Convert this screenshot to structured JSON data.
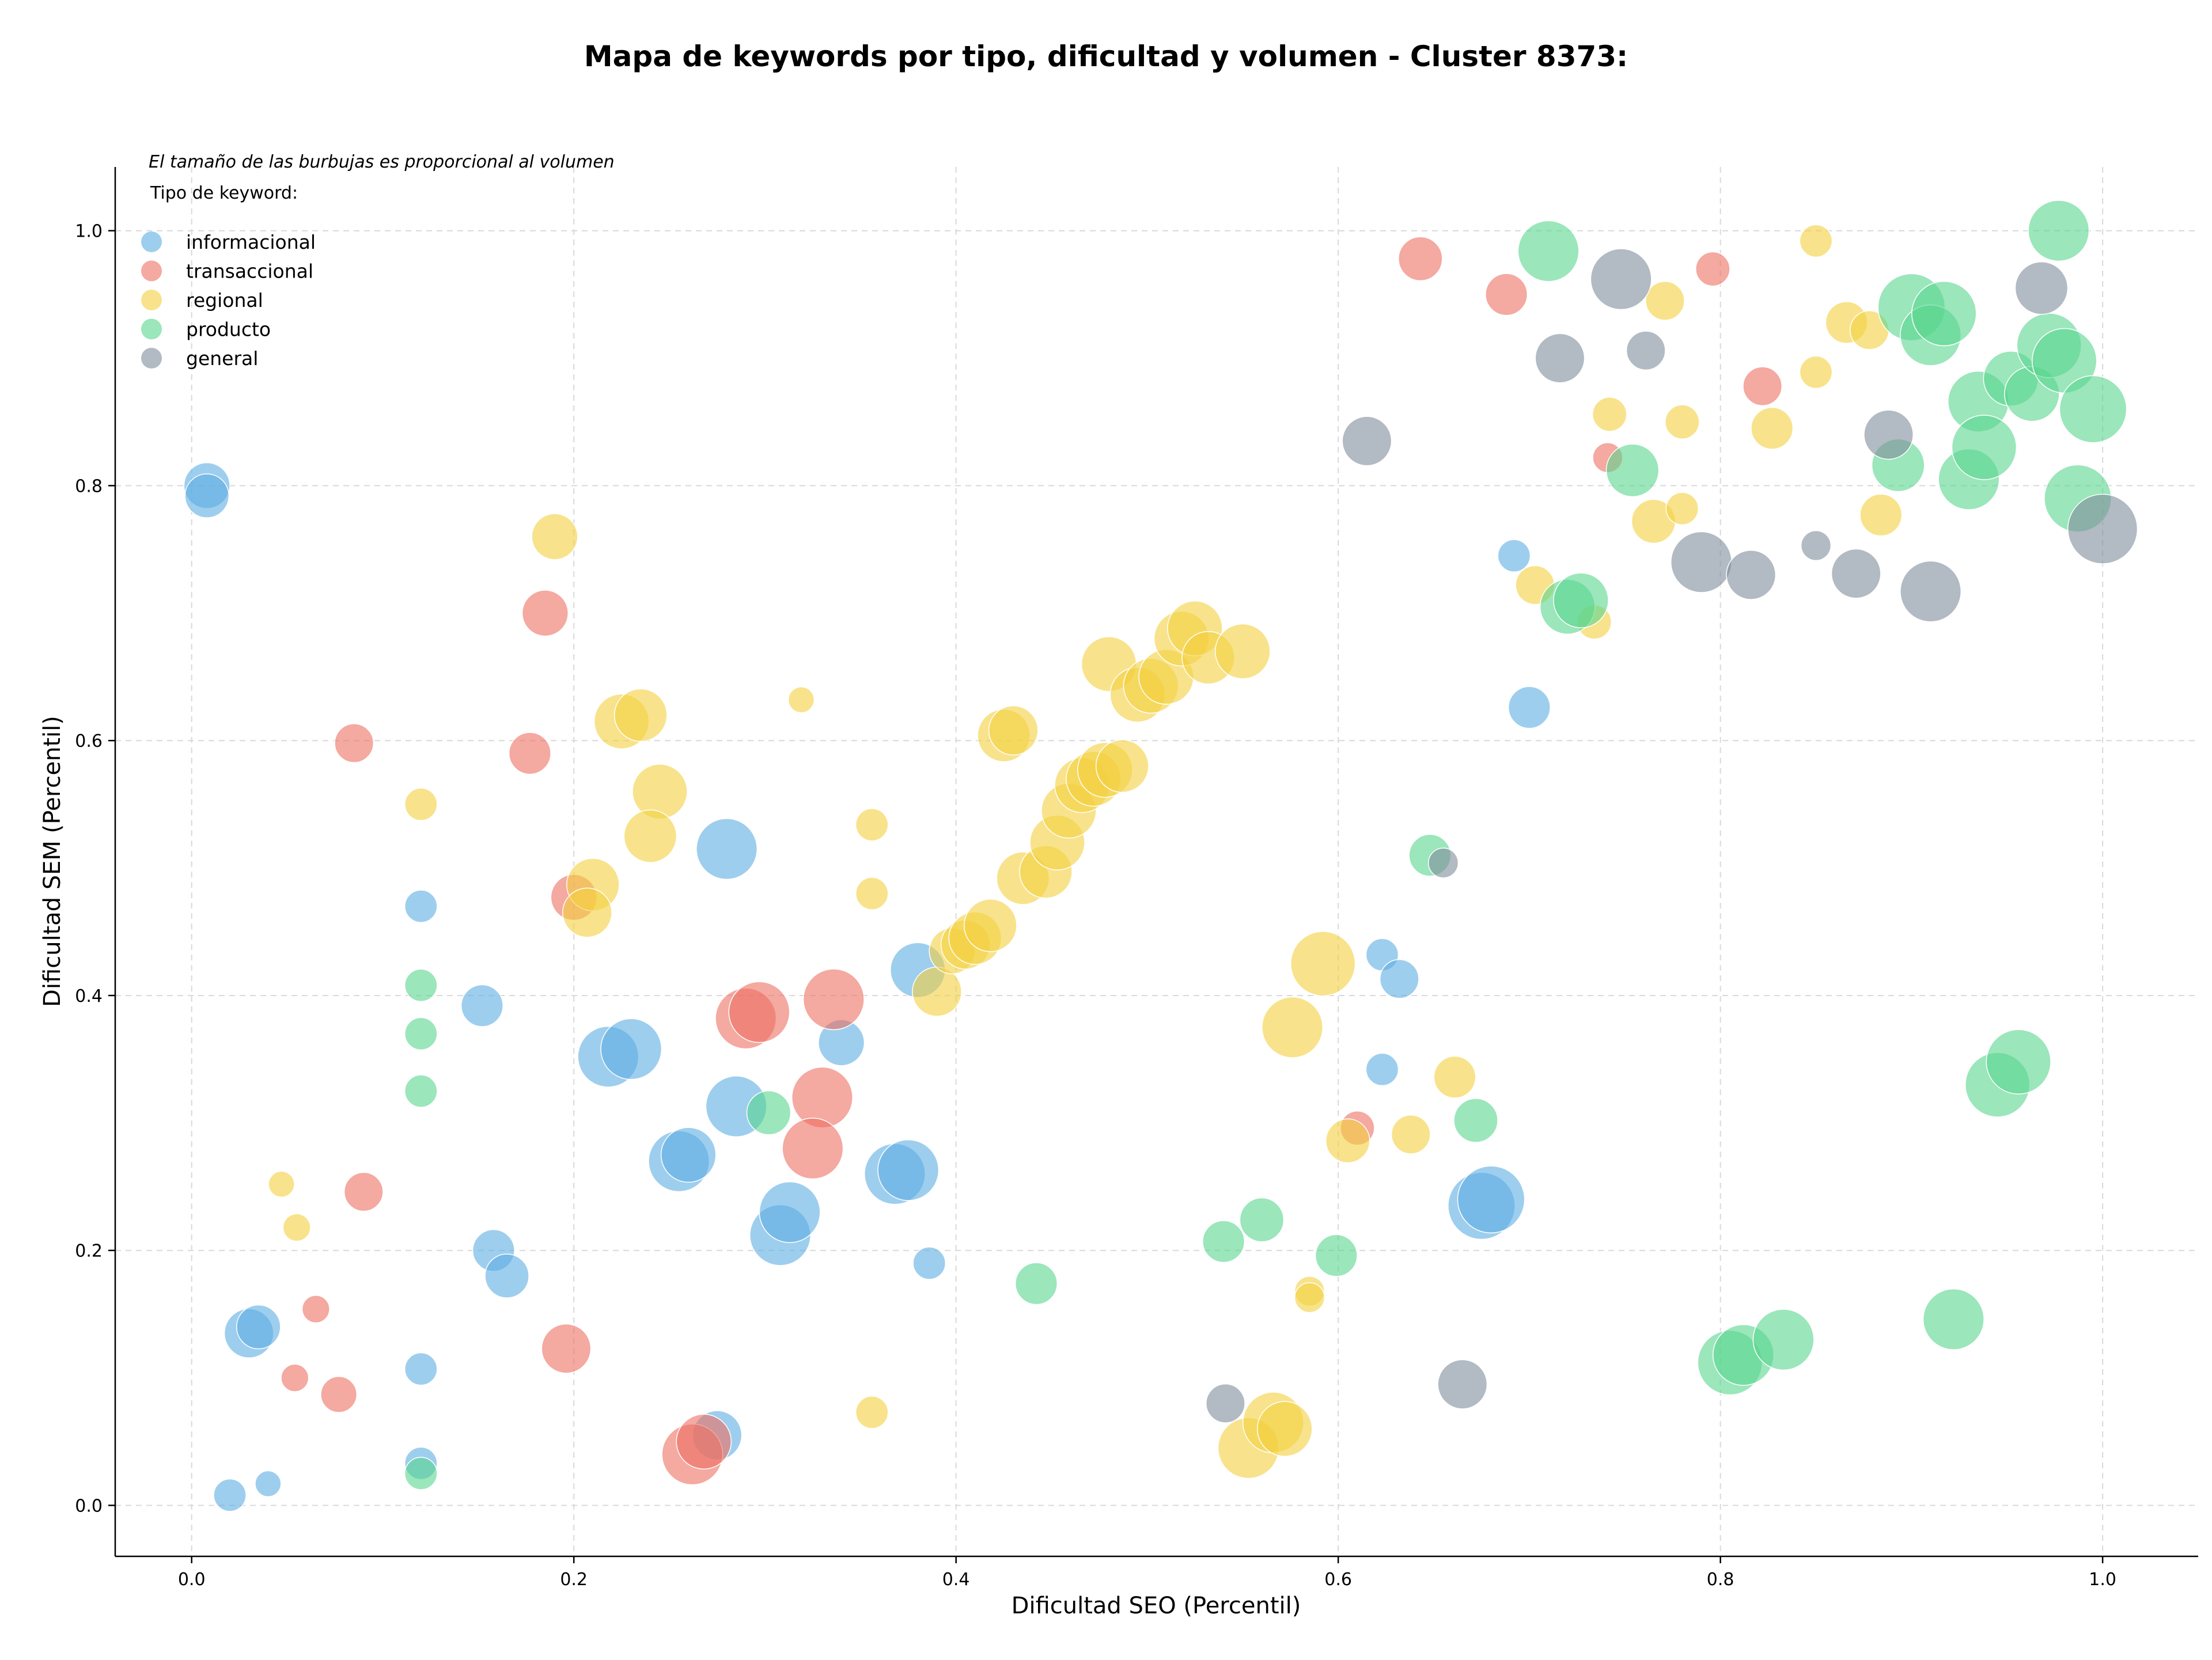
{
  "chart_data": {
    "type": "scatter",
    "title": "Mapa de keywords por tipo, dificultad y volumen - Cluster 8373:",
    "xlabel": "Dificultad SEO (Percentil)",
    "ylabel": "Dificultad SEM (Percentil)",
    "xlim": [
      -0.04,
      1.05
    ],
    "ylim": [
      -0.04,
      1.05
    ],
    "xticks": [
      "0.0",
      "0.2",
      "0.4",
      "0.6",
      "0.8",
      "1.0"
    ],
    "yticks": [
      "0.0",
      "0.2",
      "0.4",
      "0.6",
      "0.8",
      "1.0"
    ],
    "grid": true,
    "note": "El tamaño de las burbujas es proporcional al volumen",
    "legend_title": "Tipo de keyword:",
    "legend_position": "top-left",
    "series": [
      {
        "name": "informacional",
        "color": "#5DADE2",
        "points": [
          [
            0.008,
            0.8,
            0.42
          ],
          [
            0.008,
            0.792,
            0.4
          ],
          [
            0.03,
            0.135,
            0.45
          ],
          [
            0.035,
            0.14,
            0.4
          ],
          [
            0.04,
            0.017,
            0.2
          ],
          [
            0.02,
            0.008,
            0.28
          ],
          [
            0.12,
            0.47,
            0.28
          ],
          [
            0.12,
            0.107,
            0.28
          ],
          [
            0.12,
            0.033,
            0.28
          ],
          [
            0.152,
            0.392,
            0.38
          ],
          [
            0.158,
            0.2,
            0.38
          ],
          [
            0.165,
            0.18,
            0.4
          ],
          [
            0.28,
            0.515,
            0.55
          ],
          [
            0.218,
            0.352,
            0.55
          ],
          [
            0.23,
            0.358,
            0.55
          ],
          [
            0.255,
            0.27,
            0.55
          ],
          [
            0.26,
            0.275,
            0.5
          ],
          [
            0.285,
            0.313,
            0.55
          ],
          [
            0.275,
            0.055,
            0.45
          ],
          [
            0.308,
            0.212,
            0.55
          ],
          [
            0.313,
            0.23,
            0.55
          ],
          [
            0.34,
            0.363,
            0.42
          ],
          [
            0.368,
            0.26,
            0.55
          ],
          [
            0.375,
            0.263,
            0.55
          ],
          [
            0.38,
            0.42,
            0.5
          ],
          [
            0.386,
            0.19,
            0.28
          ],
          [
            0.692,
            0.745,
            0.28
          ],
          [
            0.7,
            0.626,
            0.38
          ],
          [
            0.623,
            0.432,
            0.28
          ],
          [
            0.632,
            0.413,
            0.35
          ],
          [
            0.623,
            0.342,
            0.28
          ],
          [
            0.675,
            0.235,
            0.6
          ],
          [
            0.68,
            0.24,
            0.6
          ]
        ]
      },
      {
        "name": "transaccional",
        "color": "#EC7063",
        "points": [
          [
            0.085,
            0.598,
            0.35
          ],
          [
            0.09,
            0.246,
            0.35
          ],
          [
            0.054,
            0.1,
            0.22
          ],
          [
            0.065,
            0.154,
            0.22
          ],
          [
            0.077,
            0.087,
            0.32
          ],
          [
            0.185,
            0.7,
            0.42
          ],
          [
            0.177,
            0.59,
            0.38
          ],
          [
            0.2,
            0.477,
            0.42
          ],
          [
            0.196,
            0.123,
            0.45
          ],
          [
            0.29,
            0.382,
            0.55
          ],
          [
            0.297,
            0.387,
            0.55
          ],
          [
            0.336,
            0.397,
            0.55
          ],
          [
            0.33,
            0.32,
            0.55
          ],
          [
            0.325,
            0.28,
            0.55
          ],
          [
            0.262,
            0.04,
            0.55
          ],
          [
            0.268,
            0.05,
            0.5
          ],
          [
            0.61,
            0.296,
            0.3
          ],
          [
            0.643,
            0.978,
            0.4
          ],
          [
            0.688,
            0.95,
            0.38
          ],
          [
            0.741,
            0.822,
            0.25
          ],
          [
            0.796,
            0.97,
            0.3
          ],
          [
            0.822,
            0.878,
            0.35
          ]
        ]
      },
      {
        "name": "regional",
        "color": "#F4D03F",
        "points": [
          [
            0.047,
            0.252,
            0.2
          ],
          [
            0.055,
            0.218,
            0.22
          ],
          [
            0.12,
            0.55,
            0.28
          ],
          [
            0.19,
            0.76,
            0.42
          ],
          [
            0.225,
            0.615,
            0.5
          ],
          [
            0.235,
            0.62,
            0.48
          ],
          [
            0.245,
            0.56,
            0.5
          ],
          [
            0.24,
            0.525,
            0.48
          ],
          [
            0.21,
            0.487,
            0.48
          ],
          [
            0.207,
            0.465,
            0.45
          ],
          [
            0.319,
            0.632,
            0.2
          ],
          [
            0.356,
            0.534,
            0.28
          ],
          [
            0.356,
            0.48,
            0.28
          ],
          [
            0.356,
            0.073,
            0.28
          ],
          [
            0.39,
            0.403,
            0.45
          ],
          [
            0.398,
            0.435,
            0.42
          ],
          [
            0.405,
            0.44,
            0.45
          ],
          [
            0.41,
            0.445,
            0.48
          ],
          [
            0.418,
            0.455,
            0.48
          ],
          [
            0.425,
            0.604,
            0.48
          ],
          [
            0.43,
            0.608,
            0.45
          ],
          [
            0.435,
            0.492,
            0.48
          ],
          [
            0.447,
            0.497,
            0.48
          ],
          [
            0.453,
            0.52,
            0.5
          ],
          [
            0.459,
            0.545,
            0.5
          ],
          [
            0.466,
            0.565,
            0.5
          ],
          [
            0.472,
            0.57,
            0.5
          ],
          [
            0.478,
            0.577,
            0.5
          ],
          [
            0.487,
            0.58,
            0.48
          ],
          [
            0.48,
            0.66,
            0.5
          ],
          [
            0.495,
            0.636,
            0.5
          ],
          [
            0.502,
            0.643,
            0.5
          ],
          [
            0.51,
            0.65,
            0.5
          ],
          [
            0.518,
            0.68,
            0.5
          ],
          [
            0.525,
            0.688,
            0.5
          ],
          [
            0.532,
            0.665,
            0.48
          ],
          [
            0.55,
            0.67,
            0.5
          ],
          [
            0.576,
            0.375,
            0.55
          ],
          [
            0.592,
            0.425,
            0.58
          ],
          [
            0.553,
            0.045,
            0.55
          ],
          [
            0.566,
            0.065,
            0.55
          ],
          [
            0.572,
            0.06,
            0.5
          ],
          [
            0.585,
            0.168,
            0.25
          ],
          [
            0.585,
            0.163,
            0.25
          ],
          [
            0.605,
            0.286,
            0.4
          ],
          [
            0.638,
            0.291,
            0.35
          ],
          [
            0.661,
            0.336,
            0.38
          ],
          [
            0.703,
            0.722,
            0.35
          ],
          [
            0.734,
            0.693,
            0.3
          ],
          [
            0.742,
            0.856,
            0.3
          ],
          [
            0.765,
            0.772,
            0.4
          ],
          [
            0.771,
            0.945,
            0.35
          ],
          [
            0.78,
            0.85,
            0.3
          ],
          [
            0.78,
            0.782,
            0.28
          ],
          [
            0.827,
            0.845,
            0.38
          ],
          [
            0.85,
            0.992,
            0.28
          ],
          [
            0.85,
            0.889,
            0.28
          ],
          [
            0.866,
            0.928,
            0.38
          ],
          [
            0.878,
            0.922,
            0.35
          ],
          [
            0.884,
            0.777,
            0.38
          ]
        ]
      },
      {
        "name": "producto",
        "color": "#58D68D",
        "points": [
          [
            0.12,
            0.408,
            0.28
          ],
          [
            0.12,
            0.37,
            0.28
          ],
          [
            0.12,
            0.325,
            0.28
          ],
          [
            0.12,
            0.025,
            0.28
          ],
          [
            0.302,
            0.308,
            0.4
          ],
          [
            0.442,
            0.174,
            0.38
          ],
          [
            0.54,
            0.207,
            0.38
          ],
          [
            0.56,
            0.224,
            0.4
          ],
          [
            0.599,
            0.196,
            0.38
          ],
          [
            0.648,
            0.51,
            0.38
          ],
          [
            0.672,
            0.302,
            0.4
          ],
          [
            0.71,
            0.984,
            0.55
          ],
          [
            0.72,
            0.705,
            0.5
          ],
          [
            0.727,
            0.71,
            0.5
          ],
          [
            0.754,
            0.812,
            0.48
          ],
          [
            0.805,
            0.112,
            0.58
          ],
          [
            0.812,
            0.118,
            0.55
          ],
          [
            0.833,
            0.13,
            0.55
          ],
          [
            0.922,
            0.146,
            0.55
          ],
          [
            0.893,
            0.816,
            0.48
          ],
          [
            0.9,
            0.94,
            0.6
          ],
          [
            0.91,
            0.918,
            0.55
          ],
          [
            0.917,
            0.935,
            0.58
          ],
          [
            0.93,
            0.805,
            0.55
          ],
          [
            0.935,
            0.866,
            0.55
          ],
          [
            0.938,
            0.83,
            0.58
          ],
          [
            0.945,
            0.33,
            0.58
          ],
          [
            0.956,
            0.348,
            0.58
          ],
          [
            0.952,
            0.884,
            0.5
          ],
          [
            0.963,
            0.872,
            0.5
          ],
          [
            0.972,
            0.91,
            0.58
          ],
          [
            0.98,
            0.898,
            0.58
          ],
          [
            0.977,
            1.0,
            0.55
          ],
          [
            0.987,
            0.79,
            0.6
          ],
          [
            0.995,
            0.86,
            0.6
          ]
        ]
      },
      {
        "name": "general",
        "color": "#7F8C9B",
        "points": [
          [
            0.541,
            0.08,
            0.35
          ],
          [
            0.615,
            0.835,
            0.45
          ],
          [
            0.655,
            0.504,
            0.25
          ],
          [
            0.665,
            0.095,
            0.45
          ],
          [
            0.716,
            0.9,
            0.45
          ],
          [
            0.748,
            0.962,
            0.55
          ],
          [
            0.761,
            0.906,
            0.35
          ],
          [
            0.79,
            0.74,
            0.55
          ],
          [
            0.816,
            0.73,
            0.45
          ],
          [
            0.85,
            0.753,
            0.25
          ],
          [
            0.871,
            0.731,
            0.45
          ],
          [
            0.888,
            0.84,
            0.45
          ],
          [
            0.91,
            0.717,
            0.55
          ],
          [
            0.968,
            0.955,
            0.48
          ],
          [
            1.0,
            0.766,
            0.62
          ]
        ]
      }
    ]
  }
}
